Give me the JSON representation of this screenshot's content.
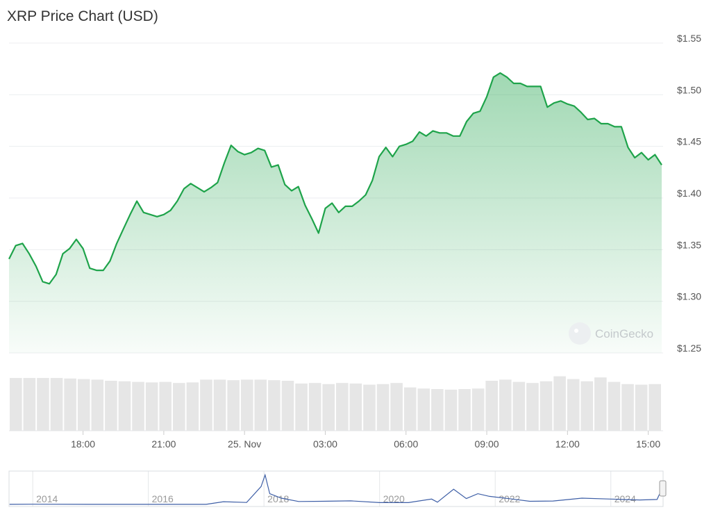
{
  "chart_data": {
    "type": "line",
    "title": "XRP Price Chart (USD)",
    "watermark": "CoinGecko",
    "color": "#1ea34a",
    "x": [
      15.25,
      15.5,
      15.75,
      16,
      16.25,
      16.5,
      16.75,
      17,
      17.25,
      17.5,
      17.75,
      18,
      18.25,
      18.5,
      18.75,
      19,
      19.25,
      19.5,
      19.75,
      20,
      20.25,
      20.5,
      20.75,
      21,
      21.25,
      21.5,
      21.75,
      22,
      22.25,
      22.5,
      22.75,
      23,
      23.25,
      23.5,
      23.75,
      24,
      24.25,
      24.5,
      24.75,
      25,
      25.25,
      25.5,
      25.75,
      26,
      26.25,
      26.5,
      26.75,
      27,
      27.25,
      27.5,
      27.75,
      28,
      28.25,
      28.5,
      28.75,
      29,
      29.25,
      29.5,
      29.75,
      30,
      30.25,
      30.5,
      30.75,
      31,
      31.25,
      31.5,
      31.75,
      32,
      32.25,
      32.5,
      32.75,
      33,
      33.25,
      33.5,
      33.75,
      34,
      34.25,
      34.5,
      34.75,
      35,
      35.25,
      35.5,
      35.75,
      36,
      36.25,
      36.5,
      36.75,
      37,
      37.25,
      37.5,
      37.75,
      38,
      38.25,
      38.5,
      38.75,
      39,
      39.25,
      39.5
    ],
    "values": [
      1.341,
      1.354,
      1.356,
      1.346,
      1.334,
      1.319,
      1.317,
      1.326,
      1.346,
      1.351,
      1.36,
      1.351,
      1.332,
      1.33,
      1.33,
      1.339,
      1.356,
      1.37,
      1.384,
      1.397,
      1.386,
      1.384,
      1.382,
      1.384,
      1.388,
      1.397,
      1.409,
      1.414,
      1.41,
      1.406,
      1.41,
      1.415,
      1.434,
      1.451,
      1.445,
      1.442,
      1.444,
      1.448,
      1.446,
      1.43,
      1.432,
      1.413,
      1.407,
      1.411,
      1.393,
      1.38,
      1.366,
      1.39,
      1.395,
      1.386,
      1.392,
      1.392,
      1.397,
      1.403,
      1.417,
      1.44,
      1.449,
      1.44,
      1.45,
      1.452,
      1.455,
      1.464,
      1.46,
      1.465,
      1.463,
      1.463,
      1.46,
      1.46,
      1.474,
      1.482,
      1.484,
      1.498,
      1.517,
      1.521,
      1.517,
      1.511,
      1.511,
      1.508,
      1.508,
      1.508,
      1.488,
      1.492,
      1.494,
      1.491,
      1.489,
      1.483,
      1.476,
      1.477,
      1.472,
      1.472,
      1.469,
      1.469,
      1.449,
      1.439,
      1.444,
      1.437,
      1.442,
      1.432
    ],
    "xlim": [
      15.25,
      39.5
    ],
    "xticks": [
      {
        "value": 18,
        "label": "18:00"
      },
      {
        "value": 21,
        "label": "21:00"
      },
      {
        "value": 24,
        "label": "25. Nov"
      },
      {
        "value": 27,
        "label": "03:00"
      },
      {
        "value": 30,
        "label": "06:00"
      },
      {
        "value": 33,
        "label": "09:00"
      },
      {
        "value": 36,
        "label": "12:00"
      },
      {
        "value": 39,
        "label": "15:00"
      }
    ],
    "ylim": [
      1.25,
      1.55
    ],
    "yticks": [
      {
        "value": 1.25,
        "label": "$1.25"
      },
      {
        "value": 1.3,
        "label": "$1.30"
      },
      {
        "value": 1.35,
        "label": "$1.35"
      },
      {
        "value": 1.4,
        "label": "$1.40"
      },
      {
        "value": 1.45,
        "label": "$1.45"
      },
      {
        "value": 1.5,
        "label": "$1.50"
      },
      {
        "value": 1.55,
        "label": "$1.55"
      }
    ],
    "grid": true,
    "volume": {
      "color": "#e6e6e6",
      "ylim": [
        0,
        100
      ],
      "values": [
        95,
        95,
        95,
        95,
        94,
        93,
        92,
        90,
        89,
        88,
        87,
        88,
        86,
        87,
        92,
        92,
        91,
        92,
        92,
        91,
        90,
        85,
        86,
        84,
        86,
        85,
        83,
        84,
        86,
        78,
        76,
        75,
        74,
        75,
        76,
        90,
        92,
        88,
        86,
        89,
        98,
        93,
        89,
        96,
        88,
        84,
        83,
        84
      ]
    },
    "navigator": {
      "color": "#3d5ea6",
      "xlim": [
        2013.59,
        2024.88
      ],
      "ylim": [
        0,
        3.5
      ],
      "xticks": [
        2014,
        2016,
        2018,
        2020,
        2022,
        2024
      ],
      "x": [
        2013.6,
        2014,
        2015,
        2016,
        2017,
        2017.3,
        2017.7,
        2017.95,
        2018.02,
        2018.1,
        2018.3,
        2018.6,
        2019,
        2019.5,
        2020,
        2020.5,
        2020.9,
        2021,
        2021.28,
        2021.5,
        2021.7,
        2021.9,
        2022.3,
        2022.6,
        2023,
        2023.5,
        2024,
        2024.5,
        2024.8,
        2024.86
      ],
      "values": [
        0.01,
        0.02,
        0.01,
        0.006,
        0.006,
        0.3,
        0.22,
        2.0,
        3.3,
        1.2,
        0.7,
        0.33,
        0.35,
        0.4,
        0.2,
        0.2,
        0.6,
        0.25,
        1.7,
        0.65,
        1.2,
        0.9,
        0.6,
        0.35,
        0.38,
        0.7,
        0.6,
        0.5,
        0.55,
        1.4
      ]
    }
  }
}
